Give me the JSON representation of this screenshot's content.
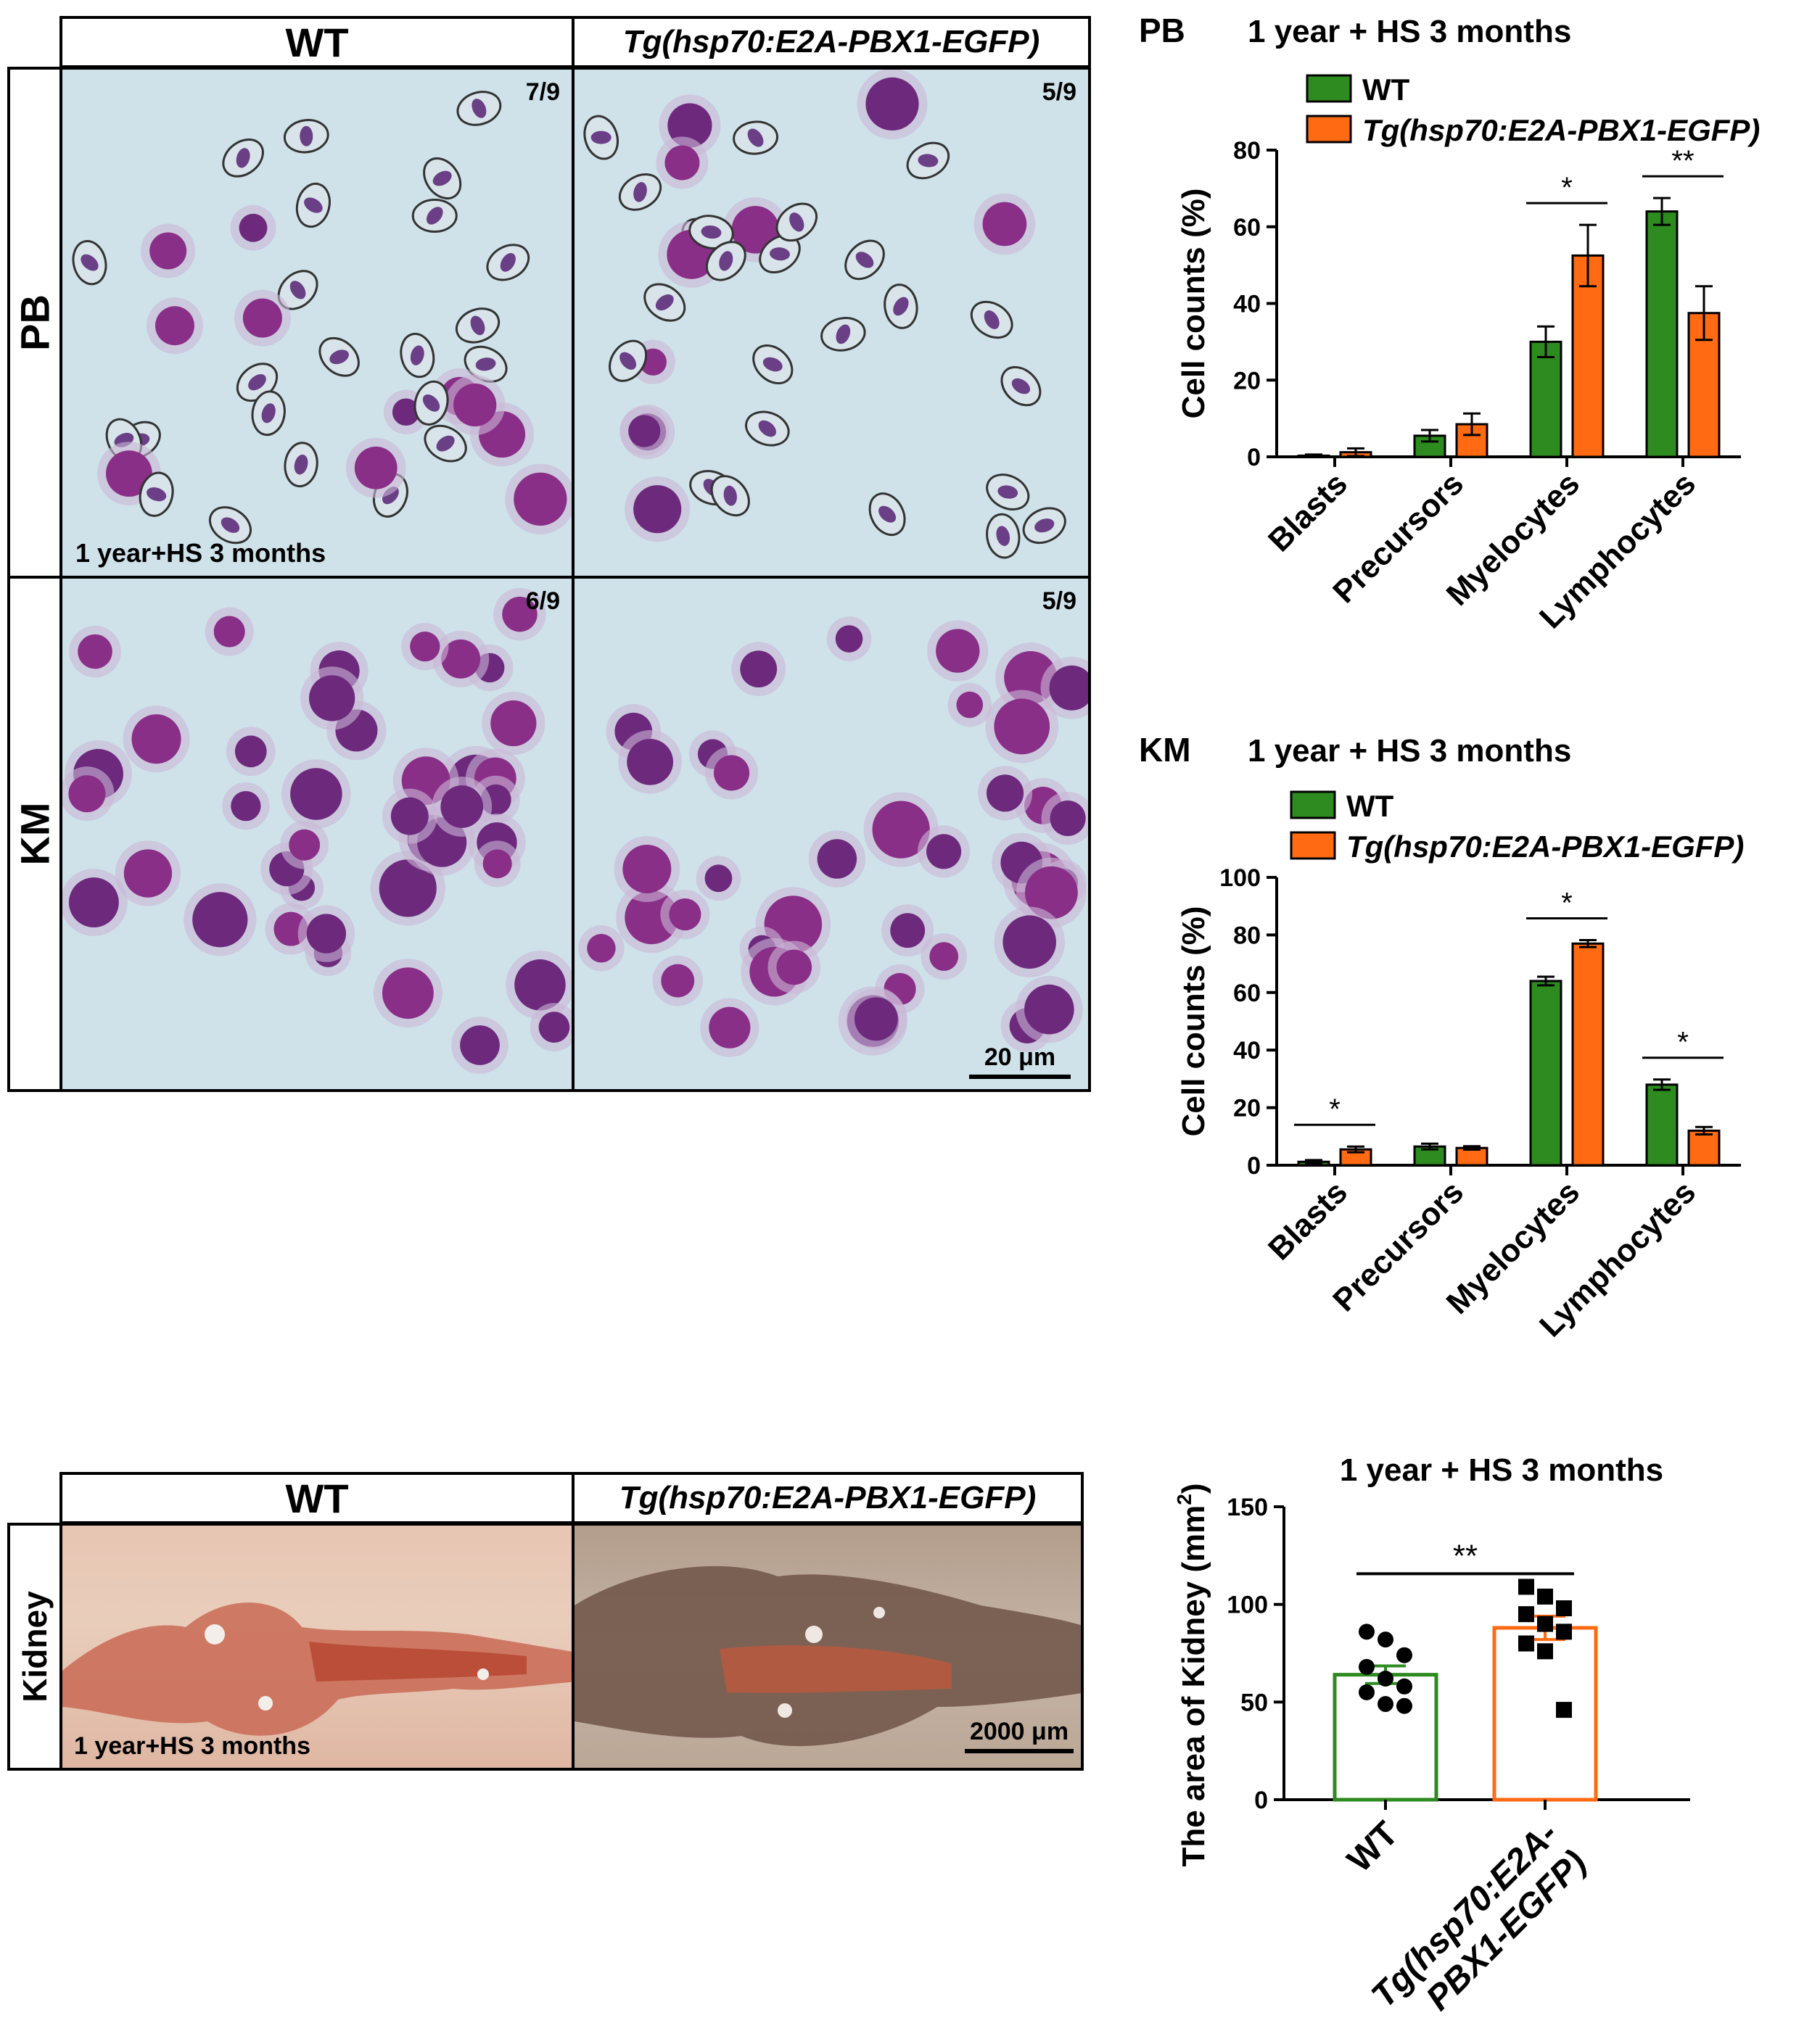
{
  "colors": {
    "wt": "#2e8b1f",
    "tg": "#ff6a13",
    "red_arrow": "#e3201b",
    "green_arrow": "#3aa83a",
    "black_arrow": "#000000"
  },
  "micro": {
    "header_wt": "WT",
    "header_tg": "Tg(hsp70:E2A-PBX1-EGFP)",
    "row_pb": "PB",
    "row_km": "KM",
    "pb_wt_fraction": "7/9",
    "pb_tg_fraction": "5/9",
    "km_wt_fraction": "6/9",
    "km_tg_fraction": "5/9",
    "caption": "1 year+HS 3 months",
    "scale_bar": "20 μm"
  },
  "kidney": {
    "header_wt": "WT",
    "header_tg": "Tg(hsp70:E2A-PBX1-EGFP)",
    "row_label": "Kidney",
    "caption": "1 year+HS 3 months",
    "scale_bar": "2000 μm"
  },
  "chart_data": [
    {
      "type": "bar",
      "panel_label": "PB",
      "title": "1 year + HS 3 months",
      "ylabel": "Cell counts (%)",
      "ylim": [
        0,
        80
      ],
      "yticks": [
        "0",
        "20",
        "40",
        "60",
        "80"
      ],
      "categories": [
        "Blasts",
        "Precursors",
        "Myelocytes",
        "Lymphocytes"
      ],
      "series": [
        {
          "name": "WT",
          "values": [
            0.3,
            5.5,
            30,
            64
          ],
          "errors": [
            0.3,
            1.5,
            4,
            3.5
          ]
        },
        {
          "name": "Tg(hsp70:E2A-PBX1-EGFP)",
          "values": [
            1.2,
            8.5,
            52.5,
            37.5
          ],
          "errors": [
            1,
            2.8,
            8,
            7
          ]
        }
      ],
      "significance": [
        {
          "category": "Myelocytes",
          "mark": "*"
        },
        {
          "category": "Lymphocytes",
          "mark": "**"
        }
      ]
    },
    {
      "type": "bar",
      "panel_label": "KM",
      "title": "1 year + HS 3 months",
      "ylabel": "Cell counts (%)",
      "ylim": [
        0,
        100
      ],
      "yticks": [
        "0",
        "20",
        "40",
        "60",
        "80",
        "100"
      ],
      "categories": [
        "Blasts",
        "Precursors",
        "Myelocytes",
        "Lymphocytes"
      ],
      "series": [
        {
          "name": "WT",
          "values": [
            1.2,
            6.5,
            64,
            28
          ],
          "errors": [
            0.6,
            1,
            1.5,
            1.8
          ]
        },
        {
          "name": "Tg(hsp70:E2A-PBX1-EGFP)",
          "values": [
            5.5,
            6,
            77,
            12
          ],
          "errors": [
            1,
            0.6,
            1.2,
            1.3
          ]
        }
      ],
      "significance": [
        {
          "category": "Blasts",
          "mark": "*"
        },
        {
          "category": "Myelocytes",
          "mark": "*"
        },
        {
          "category": "Lymphocytes",
          "mark": "*"
        }
      ]
    },
    {
      "type": "scatter",
      "title": "1 year + HS 3 months",
      "ylabel_main": "The area of Kidney (mm",
      "ylabel_sup": "2",
      "ylabel_close": ")",
      "ylim": [
        0,
        150
      ],
      "yticks": [
        "0",
        "50",
        "100",
        "150"
      ],
      "categories": [
        "WT",
        "Tg(hsp70:E2A-PBX1-EGFP)"
      ],
      "category_lines": [
        [
          "WT"
        ],
        [
          "Tg(hsp70:E2A-",
          "PBX1-EGFP)"
        ]
      ],
      "series": [
        {
          "name": "WT",
          "mean": 64,
          "sem": 4.5,
          "points": [
            86,
            82,
            74,
            68,
            62,
            58,
            55,
            49,
            48
          ]
        },
        {
          "name": "Tg(hsp70:E2A-PBX1-EGFP)",
          "mean": 88,
          "sem": 6,
          "points": [
            109,
            104,
            98,
            95,
            90,
            86,
            80,
            76,
            46
          ]
        }
      ],
      "significance": "**"
    }
  ]
}
